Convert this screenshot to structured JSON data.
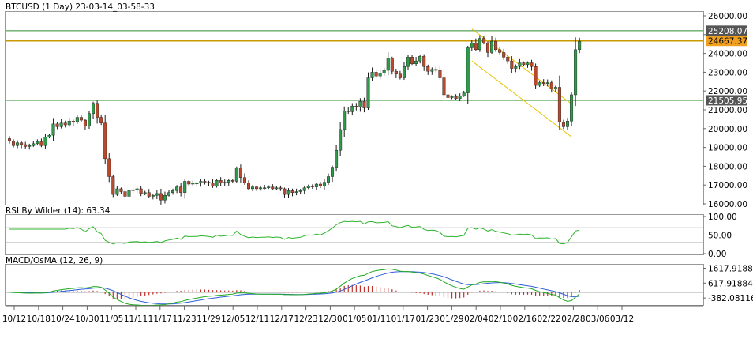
{
  "header": {
    "title": "BTCUSD (1 Day) 23-03-14_03-58-33",
    "rsi_label": "RSI By Wilder (14): 63.34",
    "macd_label": "MACD/OsMA (12, 26, 9)"
  },
  "colors": {
    "bull": "#2e9a4a",
    "bear": "#b8492c",
    "wick": "#1a1a1a",
    "rsi_line": "#2db52d",
    "macd_line": "#22aa22",
    "signal_line": "#2f5fd8",
    "osma_bar": "#c0302a",
    "support_line": "#2e8b2e",
    "resistance_line": "#c89a00",
    "channel": "#e8c200",
    "tag_current": "#f0a020",
    "tag_gray": "#555555"
  },
  "chart_data": [
    {
      "type": "candlestick",
      "title": "BTCUSD (1 Day) 23-03-14_03-58-33",
      "ylim": [
        16000,
        26000
      ],
      "y_ticks": [
        "26000.00",
        "25000.00",
        "24000.00",
        "23000.00",
        "22000.00",
        "21000.00",
        "20000.00",
        "19000.00",
        "18000.00",
        "17000.00",
        "16000.00"
      ],
      "x_ticks": [
        "10/12",
        "10/18",
        "10/24",
        "10/30",
        "11/05",
        "11/11",
        "11/17",
        "11/23",
        "11/29",
        "12/05",
        "12/11",
        "12/17",
        "12/23",
        "12/30",
        "01/05",
        "01/11",
        "01/17",
        "01/23",
        "01/29",
        "02/04",
        "02/10",
        "02/16",
        "02/22",
        "02/28",
        "03/06",
        "03/12"
      ],
      "closes": [
        19350,
        19100,
        19250,
        19150,
        19050,
        19100,
        19200,
        19300,
        19100,
        19550,
        19650,
        20250,
        20100,
        20300,
        20200,
        20400,
        20350,
        20600,
        20450,
        20150,
        20800,
        21350,
        20600,
        20300,
        18400,
        17450,
        16500,
        16800,
        16650,
        16400,
        16700,
        16750,
        16800,
        16550,
        16600,
        16400,
        16450,
        16550,
        16200,
        16450,
        16600,
        16700,
        16900,
        16600,
        17200,
        17050,
        17100,
        17100,
        17200,
        17150,
        17100,
        16950,
        17250,
        17100,
        17150,
        17250,
        17200,
        17900,
        17400,
        17100,
        16800,
        16900,
        16800,
        16850,
        16850,
        16900,
        16800,
        16850,
        16800,
        16500,
        16700,
        16600,
        16650,
        16700,
        16850,
        16950,
        16900,
        17050,
        16950,
        17150,
        17450,
        17950,
        18850,
        19950,
        20950,
        20900,
        21200,
        21150,
        21450,
        21100,
        22700,
        23000,
        22800,
        22950,
        23100,
        23750,
        23050,
        22900,
        22700,
        23300,
        23800,
        23450,
        23600,
        23850,
        23300,
        23050,
        23150,
        23100,
        22700,
        21800,
        21650,
        21700,
        21600,
        21750,
        21900,
        24300,
        24550,
        24200,
        24800,
        24550,
        24050,
        24650,
        24200,
        24050,
        23800,
        23600,
        23200,
        23300,
        23500,
        23400,
        23500,
        23300,
        22300,
        22450,
        22400,
        22450,
        22100,
        22200,
        20350,
        20100,
        20400,
        21800,
        24200,
        24650
      ],
      "horizontal_levels": [
        {
          "value": 25208.07,
          "label": "25208.07",
          "kind": "support"
        },
        {
          "value": 24667.37,
          "label": "24667.37",
          "kind": "resistance"
        },
        {
          "value": 21505.95,
          "label": "21505.95",
          "kind": "support"
        }
      ],
      "channel": {
        "upper": [
          {
            "index": 116,
            "value": 25300
          },
          {
            "index": 139,
            "value": 21450
          }
        ],
        "lower": [
          {
            "index": 116,
            "value": 23600
          },
          {
            "index": 139,
            "value": 19700
          }
        ]
      }
    },
    {
      "type": "line",
      "title": "RSI By Wilder (14): 63.34",
      "ylim": [
        0,
        100
      ],
      "y_ticks": [
        "100.00",
        "50.00",
        "0.00"
      ],
      "levels": [
        70,
        30
      ],
      "last_value": 63.34
    },
    {
      "type": "line",
      "title": "MACD/OsMA (12, 26, 9)",
      "ylim": [
        -800,
        1750
      ],
      "y_ticks": [
        "1617.91884",
        "617.91884",
        "-382.08116"
      ]
    }
  ]
}
